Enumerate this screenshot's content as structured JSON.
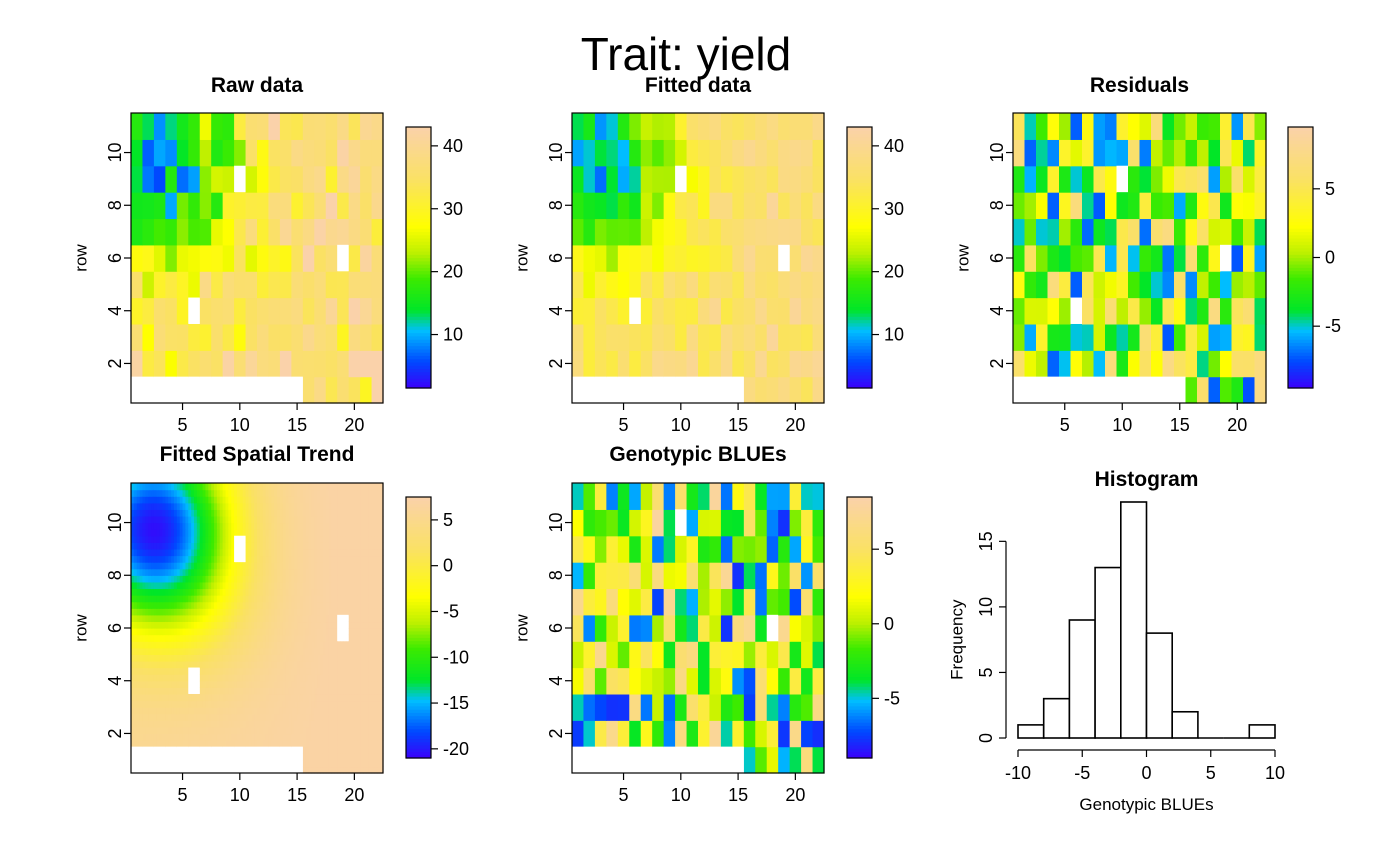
{
  "figure": {
    "main_title": "Trait: yield"
  },
  "chart_data": [
    {
      "id": "raw",
      "type": "heatmap",
      "title": "Raw data",
      "xlabel": "",
      "ylabel": "row",
      "x_ticks": [
        "5",
        "10",
        "15",
        "20"
      ],
      "y_ticks": [
        "2",
        "4",
        "6",
        "8",
        "10"
      ],
      "ncols": 22,
      "nrows": 11,
      "color_range": [
        1.5,
        43
      ],
      "colorbar_ticks": [
        "10",
        "20",
        "30",
        "40"
      ],
      "missing_cells": [
        [
          1,
          1
        ],
        [
          2,
          1
        ],
        [
          3,
          1
        ],
        [
          4,
          1
        ],
        [
          5,
          1
        ],
        [
          6,
          1
        ],
        [
          7,
          1
        ],
        [
          8,
          1
        ],
        [
          9,
          1
        ],
        [
          10,
          1
        ],
        [
          11,
          1
        ],
        [
          12,
          1
        ],
        [
          13,
          1
        ],
        [
          14,
          1
        ],
        [
          15,
          1
        ],
        [
          10,
          9
        ],
        [
          6,
          4
        ],
        [
          19,
          6
        ]
      ]
    },
    {
      "id": "fitted",
      "type": "heatmap",
      "title": "Fitted data",
      "xlabel": "",
      "ylabel": "row",
      "x_ticks": [
        "5",
        "10",
        "15",
        "20"
      ],
      "y_ticks": [
        "2",
        "4",
        "6",
        "8",
        "10"
      ],
      "ncols": 22,
      "nrows": 11,
      "color_range": [
        1.5,
        43
      ],
      "colorbar_ticks": [
        "10",
        "20",
        "30",
        "40"
      ],
      "missing_cells": [
        [
          1,
          1
        ],
        [
          2,
          1
        ],
        [
          3,
          1
        ],
        [
          4,
          1
        ],
        [
          5,
          1
        ],
        [
          6,
          1
        ],
        [
          7,
          1
        ],
        [
          8,
          1
        ],
        [
          9,
          1
        ],
        [
          10,
          1
        ],
        [
          11,
          1
        ],
        [
          12,
          1
        ],
        [
          13,
          1
        ],
        [
          14,
          1
        ],
        [
          15,
          1
        ],
        [
          10,
          9
        ],
        [
          6,
          4
        ],
        [
          19,
          6
        ]
      ]
    },
    {
      "id": "residuals",
      "type": "heatmap",
      "title": "Residuals",
      "xlabel": "",
      "ylabel": "row",
      "x_ticks": [
        "5",
        "10",
        "15",
        "20"
      ],
      "y_ticks": [
        "2",
        "4",
        "6",
        "8",
        "10"
      ],
      "ncols": 22,
      "nrows": 11,
      "color_range": [
        -9.5,
        9.5
      ],
      "colorbar_ticks": [
        "-5",
        "0",
        "5"
      ],
      "missing_cells": [
        [
          1,
          1
        ],
        [
          2,
          1
        ],
        [
          3,
          1
        ],
        [
          4,
          1
        ],
        [
          5,
          1
        ],
        [
          6,
          1
        ],
        [
          7,
          1
        ],
        [
          8,
          1
        ],
        [
          9,
          1
        ],
        [
          10,
          1
        ],
        [
          11,
          1
        ],
        [
          12,
          1
        ],
        [
          13,
          1
        ],
        [
          14,
          1
        ],
        [
          15,
          1
        ],
        [
          10,
          9
        ],
        [
          6,
          4
        ],
        [
          19,
          6
        ]
      ]
    },
    {
      "id": "spatial",
      "type": "heatmap",
      "title": "Fitted Spatial Trend",
      "xlabel": "",
      "ylabel": "row",
      "x_ticks": [
        "5",
        "10",
        "15",
        "20"
      ],
      "y_ticks": [
        "2",
        "4",
        "6",
        "8",
        "10"
      ],
      "ncols": 22,
      "nrows": 11,
      "color_range": [
        -21,
        7.5
      ],
      "colorbar_ticks": [
        "-20",
        "-15",
        "-10",
        "-5",
        "0",
        "5"
      ],
      "missing_cells": [
        [
          1,
          1
        ],
        [
          2,
          1
        ],
        [
          3,
          1
        ],
        [
          4,
          1
        ],
        [
          5,
          1
        ],
        [
          6,
          1
        ],
        [
          7,
          1
        ],
        [
          8,
          1
        ],
        [
          9,
          1
        ],
        [
          10,
          1
        ],
        [
          11,
          1
        ],
        [
          12,
          1
        ],
        [
          13,
          1
        ],
        [
          14,
          1
        ],
        [
          15,
          1
        ],
        [
          10,
          9
        ],
        [
          6,
          4
        ],
        [
          19,
          6
        ]
      ]
    },
    {
      "id": "blues",
      "type": "heatmap",
      "title": "Genotypic BLUEs",
      "xlabel": "",
      "ylabel": "row",
      "x_ticks": [
        "5",
        "10",
        "15",
        "20"
      ],
      "y_ticks": [
        "2",
        "4",
        "6",
        "8",
        "10"
      ],
      "ncols": 22,
      "nrows": 11,
      "color_range": [
        -9,
        8.5
      ],
      "colorbar_ticks": [
        "-5",
        "0",
        "5"
      ],
      "missing_cells": [
        [
          1,
          1
        ],
        [
          2,
          1
        ],
        [
          3,
          1
        ],
        [
          4,
          1
        ],
        [
          5,
          1
        ],
        [
          6,
          1
        ],
        [
          7,
          1
        ],
        [
          8,
          1
        ],
        [
          9,
          1
        ],
        [
          10,
          1
        ],
        [
          11,
          1
        ],
        [
          12,
          1
        ],
        [
          13,
          1
        ],
        [
          14,
          1
        ],
        [
          15,
          1
        ],
        [
          10,
          10
        ],
        [
          18,
          6
        ]
      ]
    },
    {
      "id": "histogram",
      "type": "bar",
      "title": "Histogram",
      "xlabel": "Genotypic BLUEs",
      "ylabel": "Frequency",
      "bin_edges": [
        -10,
        -8,
        -6,
        -4,
        -2,
        0,
        2,
        4,
        6,
        8,
        10
      ],
      "values": [
        1,
        3,
        9,
        13,
        18,
        8,
        2,
        0,
        0,
        1
      ],
      "x_ticks": [
        "-10",
        "-5",
        "0",
        "5",
        "10"
      ],
      "y_ticks": [
        "0",
        "5",
        "10",
        "15"
      ],
      "ylim": [
        0,
        18
      ]
    }
  ]
}
